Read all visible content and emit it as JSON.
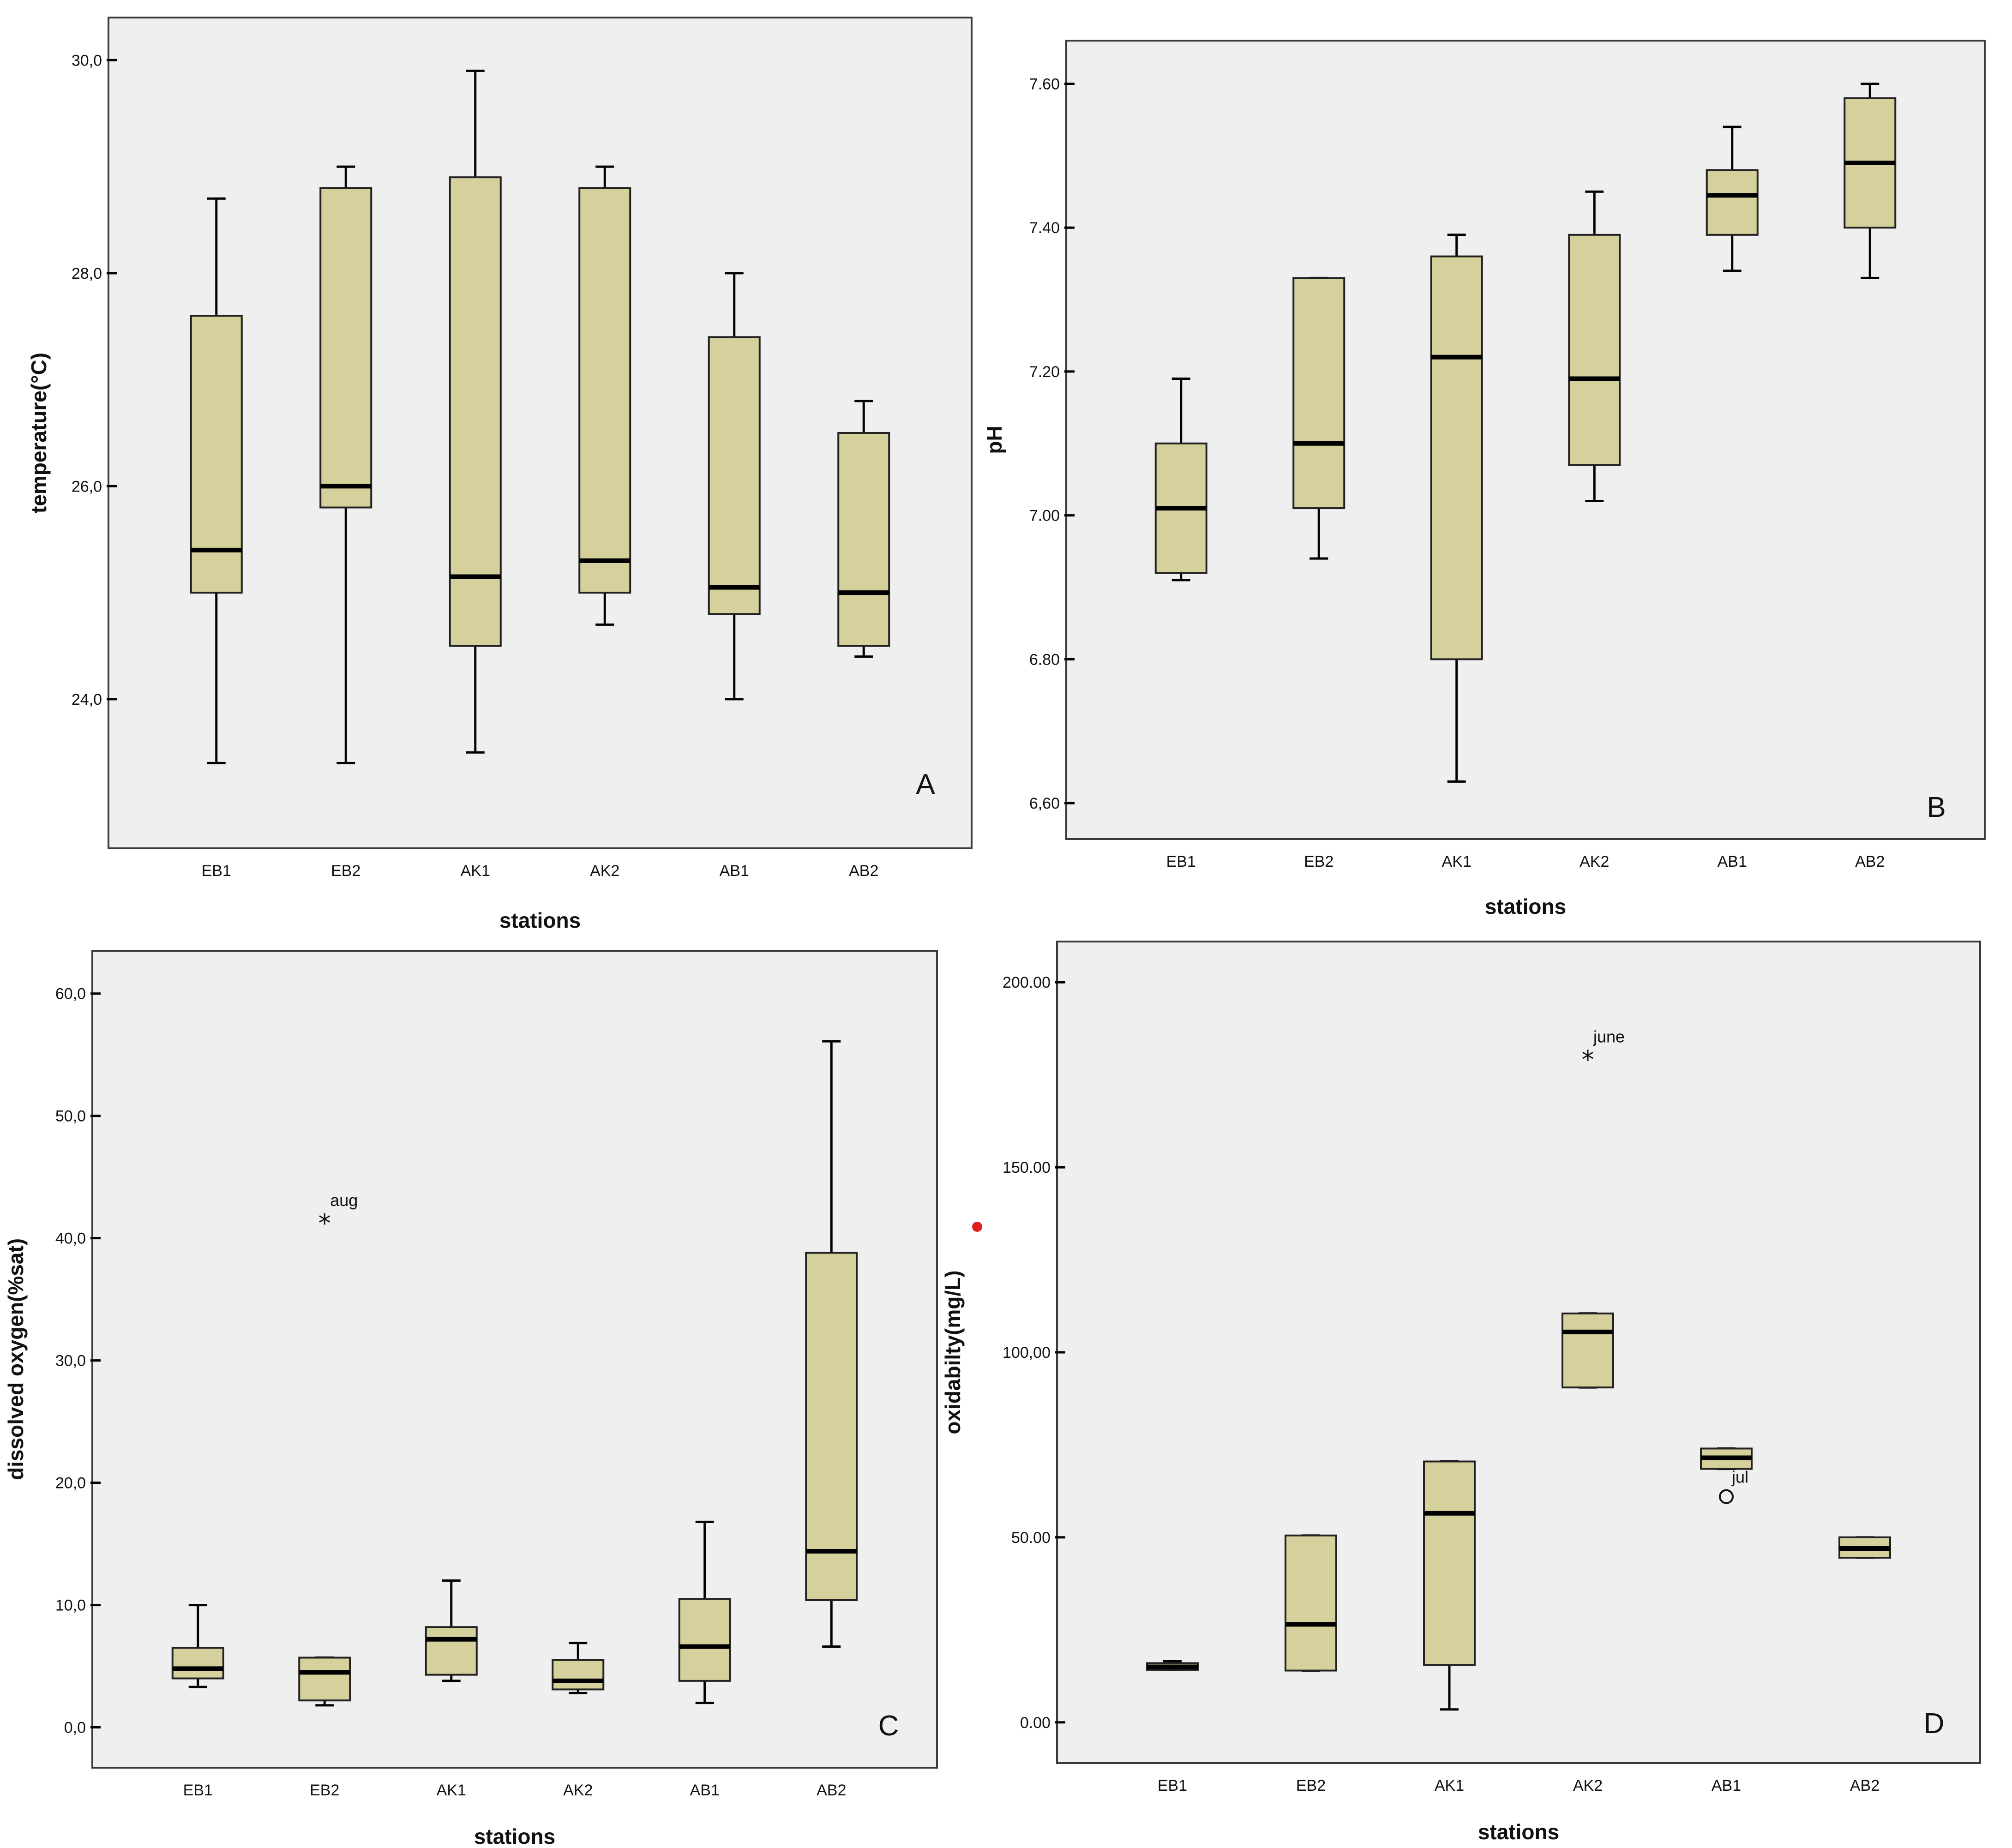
{
  "chart_data": [
    {
      "type": "boxplot",
      "panel_label": "A",
      "xlabel": "stations",
      "ylabel": "temperature(°C)",
      "categories": [
        "EB1",
        "EB2",
        "AK1",
        "AK2",
        "AB1",
        "AB2"
      ],
      "ylim": [
        22.6,
        30.4
      ],
      "yticks": [
        24.0,
        26.0,
        28.0,
        30.0
      ],
      "ytick_labels": [
        "24,0",
        "26,0",
        "28,0",
        "30,0"
      ],
      "boxes": [
        {
          "station": "EB1",
          "min": 23.4,
          "q1": 25.0,
          "median": 25.4,
          "q3": 27.6,
          "max": 28.7
        },
        {
          "station": "EB2",
          "min": 23.4,
          "q1": 25.8,
          "median": 26.0,
          "q3": 28.8,
          "max": 29.0
        },
        {
          "station": "AK1",
          "min": 23.5,
          "q1": 24.5,
          "median": 25.15,
          "q3": 28.9,
          "max": 29.9
        },
        {
          "station": "AK2",
          "min": 24.7,
          "q1": 25.0,
          "median": 25.3,
          "q3": 28.8,
          "max": 29.0
        },
        {
          "station": "AB1",
          "min": 24.0,
          "q1": 24.8,
          "median": 25.05,
          "q3": 27.4,
          "max": 28.0
        },
        {
          "station": "AB2",
          "min": 24.4,
          "q1": 24.5,
          "median": 25.0,
          "q3": 26.5,
          "max": 26.8
        }
      ],
      "outliers": []
    },
    {
      "type": "boxplot",
      "panel_label": "B",
      "xlabel": "stations",
      "ylabel": "pH",
      "categories": [
        "EB1",
        "EB2",
        "AK1",
        "AK2",
        "AB1",
        "AB2"
      ],
      "ylim": [
        6.55,
        7.66
      ],
      "yticks": [
        6.6,
        6.8,
        7.0,
        7.2,
        7.4,
        7.6
      ],
      "ytick_labels": [
        "6,60",
        "6.80",
        "7.00",
        "7.20",
        "7.40",
        "7.60"
      ],
      "boxes": [
        {
          "station": "EB1",
          "min": 6.91,
          "q1": 6.92,
          "median": 7.01,
          "q3": 7.1,
          "max": 7.19
        },
        {
          "station": "EB2",
          "min": 6.94,
          "q1": 7.01,
          "median": 7.1,
          "q3": 7.33,
          "max": 7.33
        },
        {
          "station": "AK1",
          "min": 6.63,
          "q1": 6.8,
          "median": 7.22,
          "q3": 7.36,
          "max": 7.39
        },
        {
          "station": "AK2",
          "min": 7.02,
          "q1": 7.07,
          "median": 7.19,
          "q3": 7.39,
          "max": 7.45
        },
        {
          "station": "AB1",
          "min": 7.34,
          "q1": 7.39,
          "median": 7.445,
          "q3": 7.48,
          "max": 7.54
        },
        {
          "station": "AB2",
          "min": 7.33,
          "q1": 7.4,
          "median": 7.49,
          "q3": 7.58,
          "max": 7.6
        }
      ],
      "outliers": []
    },
    {
      "type": "boxplot",
      "panel_label": "C",
      "xlabel": "stations",
      "ylabel": "dissolved oxygen(%sat)",
      "categories": [
        "EB1",
        "EB2",
        "AK1",
        "AK2",
        "AB1",
        "AB2"
      ],
      "ylim": [
        -3.3,
        63.5
      ],
      "yticks": [
        0,
        10,
        20,
        30,
        40,
        50,
        60
      ],
      "ytick_labels": [
        "0,0",
        "10,0",
        "20,0",
        "30,0",
        "40,0",
        "50,0",
        "60,0"
      ],
      "boxes": [
        {
          "station": "EB1",
          "min": 3.3,
          "q1": 4.0,
          "median": 4.8,
          "q3": 6.5,
          "max": 10.0
        },
        {
          "station": "EB2",
          "min": 1.8,
          "q1": 2.2,
          "median": 4.5,
          "q3": 5.7,
          "max": 5.7
        },
        {
          "station": "AK1",
          "min": 3.8,
          "q1": 4.3,
          "median": 7.2,
          "q3": 8.2,
          "max": 12.0
        },
        {
          "station": "AK2",
          "min": 2.8,
          "q1": 3.1,
          "median": 3.8,
          "q3": 5.5,
          "max": 6.9
        },
        {
          "station": "AB1",
          "min": 2.0,
          "q1": 3.8,
          "median": 6.6,
          "q3": 10.5,
          "max": 16.8
        },
        {
          "station": "AB2",
          "min": 6.6,
          "q1": 10.4,
          "median": 14.4,
          "q3": 38.8,
          "max": 56.1
        }
      ],
      "outliers": [
        {
          "station": "EB2",
          "value": 41.5,
          "marker": "*",
          "label": "aug"
        }
      ]
    },
    {
      "type": "boxplot",
      "panel_label": "D",
      "xlabel": "stations",
      "ylabel": "oxidabilty(mg/L)",
      "categories": [
        "EB1",
        "EB2",
        "AK1",
        "AK2",
        "AB1",
        "AB2"
      ],
      "ylim": [
        -11,
        211
      ],
      "yticks": [
        0,
        50,
        100,
        150,
        200
      ],
      "ytick_labels": [
        "0.00",
        "50.00",
        "100,00",
        "150.00",
        "200.00"
      ],
      "boxes": [
        {
          "station": "EB1",
          "min": 14.2,
          "q1": 14.2,
          "median": 15.0,
          "q3": 16.0,
          "max": 16.5
        },
        {
          "station": "EB2",
          "min": 14.0,
          "q1": 14.0,
          "median": 26.5,
          "q3": 50.5,
          "max": 50.5
        },
        {
          "station": "AK1",
          "min": 3.5,
          "q1": 15.5,
          "median": 56.5,
          "q3": 70.5,
          "max": 70.5
        },
        {
          "station": "AK2",
          "min": 90.5,
          "q1": 90.5,
          "median": 105.5,
          "q3": 110.5,
          "max": 110.5
        },
        {
          "station": "AB1",
          "min": 68.5,
          "q1": 68.5,
          "median": 71.5,
          "q3": 74.0,
          "max": 74.0
        },
        {
          "station": "AB2",
          "min": 44.5,
          "q1": 44.5,
          "median": 47.0,
          "q3": 50.0,
          "max": 50.0
        }
      ],
      "outliers": [
        {
          "station": "AK2",
          "value": 180.0,
          "marker": "*",
          "label": "june"
        },
        {
          "station": "AB1",
          "value": 61.0,
          "marker": "o",
          "label": "jul"
        }
      ]
    }
  ]
}
